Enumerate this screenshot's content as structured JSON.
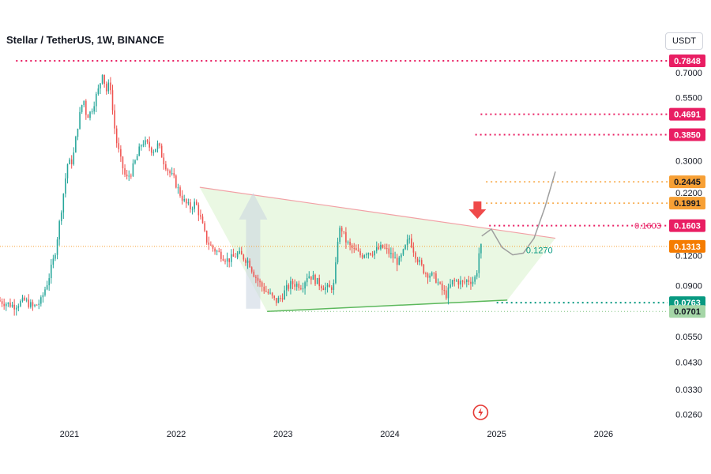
{
  "title": "Stellar / TetherUS, 1W, BINANCE",
  "currency_button": "USDT",
  "colors": {
    "up": "#26a69a",
    "down": "#ef5350",
    "resistance": "#e91e63",
    "target": "#f7a035",
    "support": "#089981",
    "triangle_fill": "#e5f6dc",
    "triangle_top": "#f2a0a5",
    "triangle_bottom": "#5cb85c",
    "arrow": "#ef4a4a"
  },
  "chart_data": {
    "type": "candlestick",
    "title": "Stellar / TetherUS, 1W, BINANCE",
    "scale": "log",
    "ylim": [
      0.024,
      0.88
    ],
    "y_ticks": [
      0.7,
      0.55,
      0.3,
      0.22,
      0.12,
      0.09,
      0.055,
      0.043,
      0.033,
      0.026
    ],
    "x_labels": [
      "2021",
      "2022",
      "2023",
      "2024",
      "2025",
      "2026"
    ],
    "x_range": [
      2020.35,
      2026.6
    ],
    "price_path": [
      [
        2020.35,
        0.078
      ],
      [
        2020.5,
        0.074
      ],
      [
        2020.6,
        0.078
      ],
      [
        2020.68,
        0.073
      ],
      [
        2020.75,
        0.077
      ],
      [
        2020.82,
        0.095
      ],
      [
        2020.88,
        0.12
      ],
      [
        2020.93,
        0.17
      ],
      [
        2021.0,
        0.29
      ],
      [
        2021.05,
        0.3
      ],
      [
        2021.1,
        0.43
      ],
      [
        2021.15,
        0.55
      ],
      [
        2021.18,
        0.46
      ],
      [
        2021.22,
        0.48
      ],
      [
        2021.27,
        0.56
      ],
      [
        2021.3,
        0.61
      ],
      [
        2021.33,
        0.72
      ],
      [
        2021.36,
        0.58
      ],
      [
        2021.4,
        0.64
      ],
      [
        2021.43,
        0.45
      ],
      [
        2021.46,
        0.36
      ],
      [
        2021.5,
        0.3
      ],
      [
        2021.55,
        0.25
      ],
      [
        2021.6,
        0.27
      ],
      [
        2021.65,
        0.31
      ],
      [
        2021.7,
        0.36
      ],
      [
        2021.75,
        0.35
      ],
      [
        2021.8,
        0.33
      ],
      [
        2021.85,
        0.35
      ],
      [
        2021.9,
        0.3
      ],
      [
        2021.95,
        0.27
      ],
      [
        2022.0,
        0.25
      ],
      [
        2022.05,
        0.22
      ],
      [
        2022.1,
        0.2
      ],
      [
        2022.15,
        0.19
      ],
      [
        2022.2,
        0.2
      ],
      [
        2022.25,
        0.17
      ],
      [
        2022.3,
        0.14
      ],
      [
        2022.35,
        0.13
      ],
      [
        2022.4,
        0.125
      ],
      [
        2022.45,
        0.12
      ],
      [
        2022.5,
        0.115
      ],
      [
        2022.55,
        0.118
      ],
      [
        2022.6,
        0.122
      ],
      [
        2022.65,
        0.118
      ],
      [
        2022.7,
        0.113
      ],
      [
        2022.75,
        0.1
      ],
      [
        2022.8,
        0.092
      ],
      [
        2022.85,
        0.086
      ],
      [
        2022.9,
        0.082
      ],
      [
        2022.95,
        0.077
      ],
      [
        2023.0,
        0.08
      ],
      [
        2023.05,
        0.087
      ],
      [
        2023.1,
        0.092
      ],
      [
        2023.15,
        0.091
      ],
      [
        2023.2,
        0.09
      ],
      [
        2023.25,
        0.1
      ],
      [
        2023.3,
        0.097
      ],
      [
        2023.35,
        0.092
      ],
      [
        2023.4,
        0.089
      ],
      [
        2023.45,
        0.087
      ],
      [
        2023.5,
        0.091
      ],
      [
        2023.53,
        0.14
      ],
      [
        2023.56,
        0.16
      ],
      [
        2023.6,
        0.14
      ],
      [
        2023.65,
        0.13
      ],
      [
        2023.7,
        0.125
      ],
      [
        2023.75,
        0.12
      ],
      [
        2023.8,
        0.125
      ],
      [
        2023.85,
        0.124
      ],
      [
        2023.9,
        0.127
      ],
      [
        2023.95,
        0.13
      ],
      [
        2024.0,
        0.125
      ],
      [
        2024.05,
        0.118
      ],
      [
        2024.1,
        0.112
      ],
      [
        2024.15,
        0.125
      ],
      [
        2024.2,
        0.143
      ],
      [
        2024.25,
        0.124
      ],
      [
        2024.3,
        0.111
      ],
      [
        2024.35,
        0.102
      ],
      [
        2024.4,
        0.1
      ],
      [
        2024.45,
        0.096
      ],
      [
        2024.5,
        0.087
      ],
      [
        2024.55,
        0.082
      ],
      [
        2024.6,
        0.093
      ],
      [
        2024.65,
        0.094
      ],
      [
        2024.7,
        0.092
      ],
      [
        2024.75,
        0.095
      ],
      [
        2024.8,
        0.094
      ],
      [
        2024.83,
        0.1
      ],
      [
        2024.86,
        0.13
      ]
    ],
    "horizontal_levels": [
      {
        "label": "0.7848",
        "value": 0.7848,
        "style": "resistance",
        "x_start": 2020.5
      },
      {
        "label": "0.4691",
        "value": 0.4691,
        "style": "resistance",
        "x_start": 2024.85
      },
      {
        "label": "0.3850",
        "value": 0.385,
        "style": "resistance",
        "x_start": 2024.8
      },
      {
        "label": "0.2445",
        "value": 0.2445,
        "style": "target",
        "x_start": 2024.9
      },
      {
        "label": "0.1991",
        "value": 0.1991,
        "style": "target",
        "x_start": 2024.9
      },
      {
        "label": "0.1603",
        "value": 0.1603,
        "style": "resistance",
        "x_start": 2024.93,
        "inline_label": "0.1603"
      },
      {
        "label": "0.1313",
        "value": 0.1313,
        "style": "current",
        "x_start": 2020.35
      },
      {
        "label": "0.0763",
        "value": 0.0763,
        "style": "support",
        "x_start": 2025.0
      },
      {
        "label": "0.0701",
        "value": 0.0701,
        "style": "support_light",
        "x_start": 2022.85
      }
    ],
    "triangle": {
      "top_line": [
        [
          2022.22,
          0.232
        ],
        [
          2025.55,
          0.142
        ]
      ],
      "bottom_line": [
        [
          2022.85,
          0.0701
        ],
        [
          2025.1,
          0.0782
        ]
      ]
    },
    "annotation_label": {
      "text": "0.1270",
      "x": 2025.4,
      "y": 0.123
    },
    "projection_path": [
      [
        2024.86,
        0.145
      ],
      [
        2024.95,
        0.155
      ],
      [
        2025.05,
        0.13
      ],
      [
        2025.15,
        0.121
      ],
      [
        2025.25,
        0.123
      ],
      [
        2025.35,
        0.142
      ],
      [
        2025.45,
        0.19
      ],
      [
        2025.55,
        0.27
      ]
    ],
    "arrow_marker": {
      "x": 2024.82,
      "y": 0.182
    }
  }
}
